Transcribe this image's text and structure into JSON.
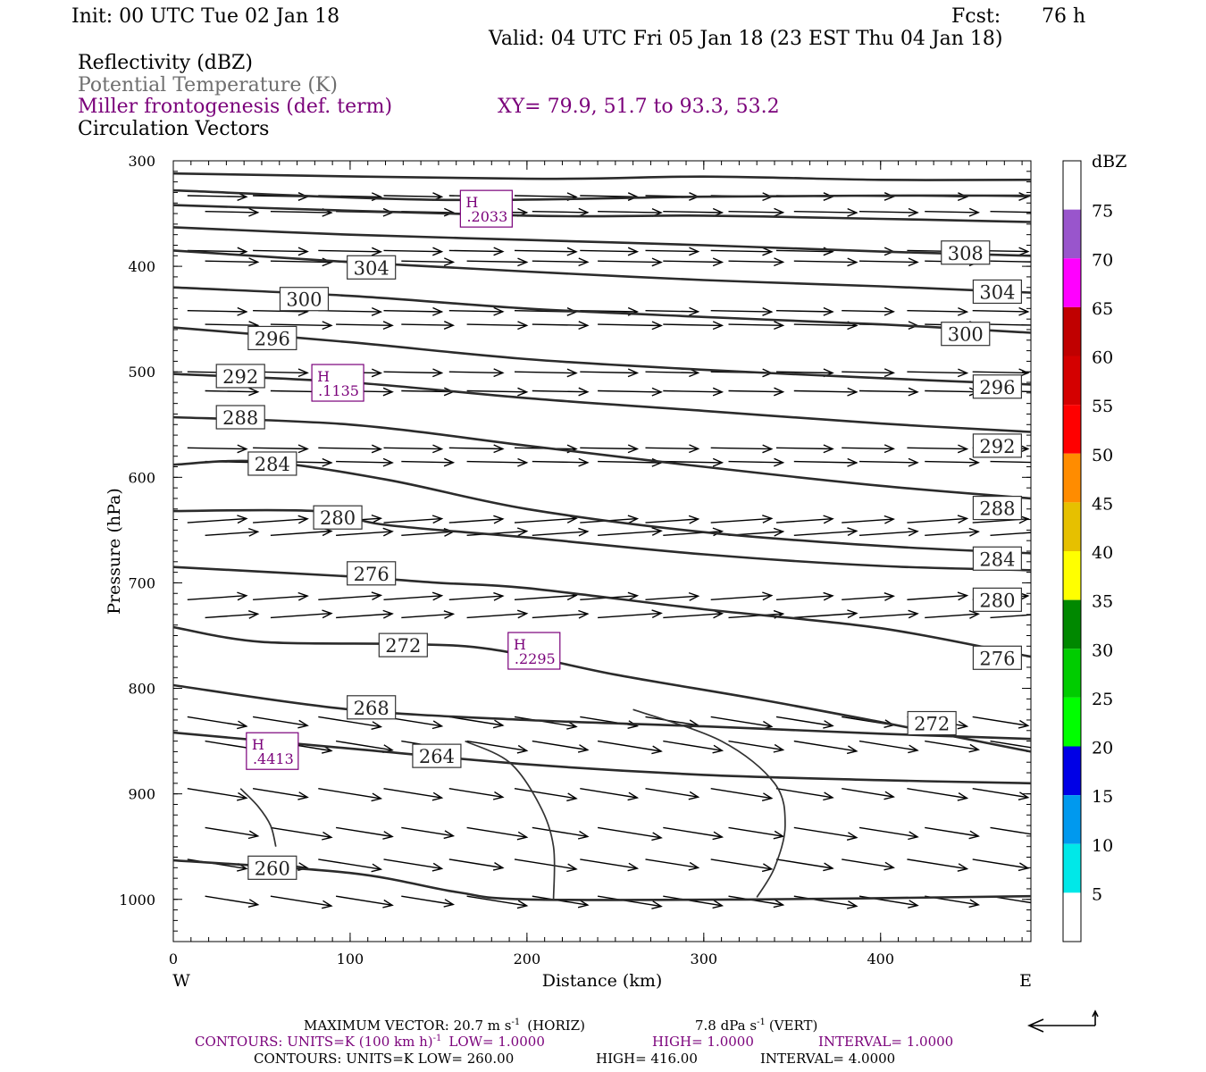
{
  "header": {
    "init": "Init: 00 UTC Tue 02 Jan 18",
    "fcst_label": "Fcst:",
    "fcst_value": "76 h",
    "valid": "Valid: 04 UTC Fri 05 Jan 18 (23 EST Thu 04 Jan 18)"
  },
  "legend": {
    "line1": "Reflectivity (dBZ)",
    "line2": "Potential Temperature (K)",
    "line3": "Miller frontogenesis (def. term)",
    "xy": "XY=  79.9, 51.7 to  93.3, 53.2",
    "line4": "Circulation Vectors"
  },
  "colors": {
    "legend_gray": "#6e6e6e",
    "frontogenesis": "#7a007a",
    "contour": "#2b2b2b"
  },
  "chart_data": {
    "type": "cross-section",
    "xlabel": "Distance (km)",
    "ylabel": "Pressure (hPa)",
    "xlim": [
      0,
      485
    ],
    "ylim_pressure": [
      300,
      1040
    ],
    "x_ticks": [
      0,
      100,
      200,
      300,
      400
    ],
    "y_ticks": [
      300,
      400,
      500,
      600,
      700,
      800,
      900,
      1000
    ],
    "x_end_labels": {
      "left": "W",
      "right": "E"
    },
    "colorbar": {
      "unit": "dBZ",
      "ticks": [
        "5",
        "10",
        "15",
        "20",
        "25",
        "30",
        "35",
        "40",
        "45",
        "50",
        "55",
        "60",
        "65",
        "70",
        "75"
      ],
      "colors": [
        "#ffffff",
        "#00e8e8",
        "#0099ee",
        "#0000e6",
        "#00ff00",
        "#00cc00",
        "#008800",
        "#ffff00",
        "#e6c000",
        "#ff8c00",
        "#ff0000",
        "#d40000",
        "#c00000",
        "#ff00ff",
        "#9955cc",
        "#ffffff"
      ]
    },
    "theta_contours": [
      {
        "label": "260",
        "points": [
          [
            0,
            963
          ],
          [
            100,
            975
          ],
          [
            160,
            993
          ],
          [
            200,
            1000
          ],
          [
            330,
            1000
          ],
          [
            485,
            997
          ]
        ]
      },
      {
        "label": "264",
        "points": [
          [
            0,
            842
          ],
          [
            100,
            857
          ],
          [
            200,
            872
          ],
          [
            300,
            882
          ],
          [
            400,
            887
          ],
          [
            485,
            890
          ]
        ]
      },
      {
        "label": "268",
        "points": [
          [
            0,
            797
          ],
          [
            100,
            820
          ],
          [
            200,
            830
          ],
          [
            300,
            836
          ],
          [
            400,
            843
          ],
          [
            485,
            848
          ]
        ]
      },
      {
        "label": "272",
        "points": [
          [
            0,
            742
          ],
          [
            50,
            756
          ],
          [
            130,
            758
          ],
          [
            180,
            763
          ],
          [
            250,
            787
          ],
          [
            330,
            810
          ],
          [
            400,
            832
          ],
          [
            485,
            860
          ]
        ]
      },
      {
        "label": "276",
        "points": [
          [
            0,
            685
          ],
          [
            100,
            694
          ],
          [
            150,
            700
          ],
          [
            200,
            705
          ],
          [
            300,
            725
          ],
          [
            400,
            743
          ],
          [
            485,
            770
          ]
        ]
      },
      {
        "label": "280",
        "points": [
          [
            0,
            632
          ],
          [
            80,
            632
          ],
          [
            120,
            645
          ],
          [
            200,
            657
          ],
          [
            300,
            673
          ],
          [
            400,
            684
          ],
          [
            485,
            688
          ]
        ]
      },
      {
        "label": "284",
        "points": [
          [
            0,
            588
          ],
          [
            50,
            585
          ],
          [
            120,
            602
          ],
          [
            200,
            630
          ],
          [
            300,
            652
          ],
          [
            400,
            665
          ],
          [
            485,
            672
          ]
        ]
      },
      {
        "label": "288",
        "points": [
          [
            0,
            543
          ],
          [
            100,
            550
          ],
          [
            200,
            570
          ],
          [
            300,
            590
          ],
          [
            400,
            608
          ],
          [
            485,
            620
          ]
        ]
      },
      {
        "label": "292",
        "points": [
          [
            0,
            502
          ],
          [
            100,
            510
          ],
          [
            200,
            525
          ],
          [
            300,
            537
          ],
          [
            400,
            549
          ],
          [
            485,
            557
          ]
        ]
      },
      {
        "label": "296",
        "points": [
          [
            0,
            458
          ],
          [
            100,
            472
          ],
          [
            200,
            488
          ],
          [
            300,
            498
          ],
          [
            400,
            506
          ],
          [
            485,
            512
          ]
        ]
      },
      {
        "label": "300",
        "points": [
          [
            0,
            420
          ],
          [
            100,
            428
          ],
          [
            200,
            440
          ],
          [
            300,
            448
          ],
          [
            400,
            455
          ],
          [
            485,
            463
          ]
        ]
      },
      {
        "label": "304",
        "points": [
          [
            0,
            385
          ],
          [
            100,
            396
          ],
          [
            200,
            405
          ],
          [
            300,
            413
          ],
          [
            400,
            419
          ],
          [
            485,
            425
          ]
        ]
      },
      {
        "label": "308",
        "points": [
          [
            0,
            363
          ],
          [
            100,
            370
          ],
          [
            200,
            375
          ],
          [
            300,
            380
          ],
          [
            400,
            386
          ],
          [
            485,
            390
          ]
        ]
      },
      {
        "label": "",
        "points": [
          [
            0,
            342
          ],
          [
            200,
            352
          ],
          [
            300,
            352
          ],
          [
            400,
            355
          ],
          [
            485,
            358
          ]
        ]
      },
      {
        "label": "",
        "points": [
          [
            0,
            328
          ],
          [
            150,
            337
          ],
          [
            300,
            334
          ],
          [
            400,
            333
          ],
          [
            485,
            333
          ]
        ]
      },
      {
        "label": "",
        "points": [
          [
            0,
            312
          ],
          [
            200,
            317
          ],
          [
            300,
            315
          ],
          [
            400,
            318
          ],
          [
            485,
            318
          ]
        ]
      }
    ],
    "theta_labels": [
      {
        "text": "304",
        "x": 112,
        "p": 401
      },
      {
        "text": "300",
        "x": 74,
        "p": 431
      },
      {
        "text": "296",
        "x": 56,
        "p": 468
      },
      {
        "text": "292",
        "x": 38,
        "p": 504
      },
      {
        "text": "288",
        "x": 38,
        "p": 543
      },
      {
        "text": "284",
        "x": 56,
        "p": 587
      },
      {
        "text": "280",
        "x": 93,
        "p": 638
      },
      {
        "text": "276",
        "x": 112,
        "p": 691
      },
      {
        "text": "272",
        "x": 130,
        "p": 759
      },
      {
        "text": "268",
        "x": 112,
        "p": 818
      },
      {
        "text": "264",
        "x": 149,
        "p": 864
      },
      {
        "text": "260",
        "x": 56,
        "p": 970
      },
      {
        "text": "308",
        "x": 448,
        "p": 387
      },
      {
        "text": "304",
        "x": 466,
        "p": 424
      },
      {
        "text": "300",
        "x": 448,
        "p": 464
      },
      {
        "text": "296",
        "x": 466,
        "p": 514
      },
      {
        "text": "292",
        "x": 466,
        "p": 570
      },
      {
        "text": "288",
        "x": 466,
        "p": 629
      },
      {
        "text": "284",
        "x": 466,
        "p": 677
      },
      {
        "text": "280",
        "x": 466,
        "p": 716
      },
      {
        "text": "276",
        "x": 466,
        "p": 771
      },
      {
        "text": "272",
        "x": 429,
        "p": 833
      }
    ],
    "frontogenesis_contours": [
      {
        "points": [
          [
            38,
            895
          ],
          [
            48,
            912
          ],
          [
            55,
            930
          ],
          [
            58,
            950
          ]
        ]
      },
      {
        "points": [
          [
            165,
            850
          ],
          [
            190,
            870
          ],
          [
            207,
            910
          ],
          [
            215,
            950
          ],
          [
            215,
            1000
          ]
        ]
      },
      {
        "points": [
          [
            260,
            820
          ],
          [
            310,
            850
          ],
          [
            340,
            890
          ],
          [
            346,
            930
          ],
          [
            340,
            970
          ],
          [
            330,
            998
          ]
        ]
      }
    ],
    "frontogenesis_maxima": [
      {
        "symbol": "H",
        "value": ".2033",
        "x": 177,
        "p": 345
      },
      {
        "symbol": "H",
        "value": ".1135",
        "x": 93,
        "p": 510
      },
      {
        "symbol": "H",
        "value": ".2295",
        "x": 204,
        "p": 764
      },
      {
        "symbol": "H",
        "value": ".4413",
        "x": 56,
        "p": 859
      }
    ]
  },
  "footer": {
    "max_vector": "MAXIMUM VECTOR:  20.7 m s",
    "max_vector_exp": "-1",
    "max_vector_horiz": "(HORIZ)",
    "max_vector_vert": "7.8 dPa s",
    "max_vector_vert_exp": "-1",
    "max_vector_vert_tail": "(VERT)",
    "contours1_a": "CONTOURS:  UNITS=K (100 km h)",
    "contours1_exp": "-1",
    "contours1_low": "LOW=  1.0000",
    "contours1_high": "HIGH=  1.0000",
    "contours1_int": "INTERVAL=   1.0000",
    "contours2_a": "CONTOURS:  UNITS=K  LOW=  260.00",
    "contours2_high": "HIGH=  416.00",
    "contours2_int": "INTERVAL=    4.0000"
  }
}
